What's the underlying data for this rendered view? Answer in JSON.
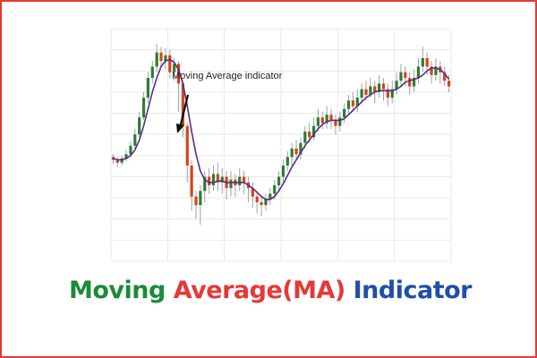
{
  "chart_data": {
    "type": "candlestick",
    "annotation": "Moving Average indicator",
    "grid": true,
    "colors": {
      "up": "#2e7d32",
      "down": "#d84315",
      "ma_line": "#5b2a86",
      "grid": "#e9e9e9"
    },
    "candles": [
      {
        "o": 58,
        "c": 56,
        "h": 60,
        "l": 53
      },
      {
        "o": 56,
        "c": 54,
        "h": 58,
        "l": 51
      },
      {
        "o": 54,
        "c": 57,
        "h": 59,
        "l": 52
      },
      {
        "o": 57,
        "c": 60,
        "h": 63,
        "l": 55
      },
      {
        "o": 60,
        "c": 66,
        "h": 69,
        "l": 58
      },
      {
        "o": 66,
        "c": 74,
        "h": 78,
        "l": 64
      },
      {
        "o": 74,
        "c": 86,
        "h": 90,
        "l": 72
      },
      {
        "o": 86,
        "c": 100,
        "h": 104,
        "l": 84
      },
      {
        "o": 100,
        "c": 114,
        "h": 118,
        "l": 96
      },
      {
        "o": 114,
        "c": 122,
        "h": 126,
        "l": 110
      },
      {
        "o": 122,
        "c": 132,
        "h": 138,
        "l": 118
      },
      {
        "o": 132,
        "c": 126,
        "h": 136,
        "l": 122
      },
      {
        "o": 126,
        "c": 130,
        "h": 135,
        "l": 120
      },
      {
        "o": 130,
        "c": 118,
        "h": 134,
        "l": 114
      },
      {
        "o": 118,
        "c": 124,
        "h": 128,
        "l": 112
      },
      {
        "o": 124,
        "c": 110,
        "h": 126,
        "l": 90
      },
      {
        "o": 110,
        "c": 80,
        "h": 112,
        "l": 72
      },
      {
        "o": 80,
        "c": 52,
        "h": 82,
        "l": 40
      },
      {
        "o": 52,
        "c": 30,
        "h": 56,
        "l": 20
      },
      {
        "o": 30,
        "c": 24,
        "h": 34,
        "l": 14
      },
      {
        "o": 24,
        "c": 34,
        "h": 38,
        "l": 10
      },
      {
        "o": 34,
        "c": 44,
        "h": 48,
        "l": 26
      },
      {
        "o": 44,
        "c": 38,
        "h": 50,
        "l": 32
      },
      {
        "o": 38,
        "c": 46,
        "h": 52,
        "l": 34
      },
      {
        "o": 46,
        "c": 40,
        "h": 54,
        "l": 34
      },
      {
        "o": 40,
        "c": 44,
        "h": 50,
        "l": 32
      },
      {
        "o": 44,
        "c": 36,
        "h": 48,
        "l": 28
      },
      {
        "o": 36,
        "c": 42,
        "h": 48,
        "l": 30
      },
      {
        "o": 42,
        "c": 38,
        "h": 46,
        "l": 30
      },
      {
        "o": 38,
        "c": 44,
        "h": 50,
        "l": 34
      },
      {
        "o": 44,
        "c": 40,
        "h": 48,
        "l": 32
      },
      {
        "o": 40,
        "c": 36,
        "h": 44,
        "l": 26
      },
      {
        "o": 36,
        "c": 30,
        "h": 40,
        "l": 22
      },
      {
        "o": 30,
        "c": 26,
        "h": 34,
        "l": 18
      },
      {
        "o": 26,
        "c": 24,
        "h": 30,
        "l": 16
      },
      {
        "o": 24,
        "c": 28,
        "h": 32,
        "l": 20
      },
      {
        "o": 28,
        "c": 32,
        "h": 36,
        "l": 24
      },
      {
        "o": 32,
        "c": 38,
        "h": 42,
        "l": 28
      },
      {
        "o": 38,
        "c": 44,
        "h": 48,
        "l": 34
      },
      {
        "o": 44,
        "c": 52,
        "h": 56,
        "l": 40
      },
      {
        "o": 52,
        "c": 58,
        "h": 62,
        "l": 48
      },
      {
        "o": 58,
        "c": 64,
        "h": 68,
        "l": 52
      },
      {
        "o": 64,
        "c": 60,
        "h": 70,
        "l": 56
      },
      {
        "o": 60,
        "c": 68,
        "h": 72,
        "l": 56
      },
      {
        "o": 68,
        "c": 76,
        "h": 80,
        "l": 64
      },
      {
        "o": 76,
        "c": 72,
        "h": 82,
        "l": 68
      },
      {
        "o": 72,
        "c": 80,
        "h": 86,
        "l": 70
      },
      {
        "o": 80,
        "c": 86,
        "h": 92,
        "l": 76
      },
      {
        "o": 86,
        "c": 82,
        "h": 90,
        "l": 78
      },
      {
        "o": 82,
        "c": 88,
        "h": 94,
        "l": 78
      },
      {
        "o": 88,
        "c": 84,
        "h": 92,
        "l": 78
      },
      {
        "o": 84,
        "c": 80,
        "h": 88,
        "l": 74
      },
      {
        "o": 80,
        "c": 86,
        "h": 90,
        "l": 76
      },
      {
        "o": 86,
        "c": 92,
        "h": 96,
        "l": 82
      },
      {
        "o": 92,
        "c": 98,
        "h": 102,
        "l": 88
      },
      {
        "o": 98,
        "c": 94,
        "h": 104,
        "l": 90
      },
      {
        "o": 94,
        "c": 100,
        "h": 106,
        "l": 90
      },
      {
        "o": 100,
        "c": 106,
        "h": 110,
        "l": 96
      },
      {
        "o": 106,
        "c": 102,
        "h": 112,
        "l": 98
      },
      {
        "o": 102,
        "c": 108,
        "h": 114,
        "l": 100
      },
      {
        "o": 108,
        "c": 104,
        "h": 112,
        "l": 96
      },
      {
        "o": 104,
        "c": 110,
        "h": 116,
        "l": 100
      },
      {
        "o": 110,
        "c": 106,
        "h": 114,
        "l": 98
      },
      {
        "o": 106,
        "c": 100,
        "h": 110,
        "l": 94
      },
      {
        "o": 100,
        "c": 106,
        "h": 112,
        "l": 96
      },
      {
        "o": 106,
        "c": 112,
        "h": 118,
        "l": 102
      },
      {
        "o": 112,
        "c": 118,
        "h": 124,
        "l": 108
      },
      {
        "o": 118,
        "c": 114,
        "h": 122,
        "l": 108
      },
      {
        "o": 114,
        "c": 108,
        "h": 118,
        "l": 102
      },
      {
        "o": 108,
        "c": 114,
        "h": 120,
        "l": 104
      },
      {
        "o": 114,
        "c": 122,
        "h": 128,
        "l": 110
      },
      {
        "o": 122,
        "c": 128,
        "h": 136,
        "l": 118
      },
      {
        "o": 128,
        "c": 122,
        "h": 132,
        "l": 116
      },
      {
        "o": 122,
        "c": 116,
        "h": 126,
        "l": 110
      },
      {
        "o": 116,
        "c": 122,
        "h": 128,
        "l": 112
      },
      {
        "o": 122,
        "c": 118,
        "h": 126,
        "l": 110
      },
      {
        "o": 118,
        "c": 112,
        "h": 122,
        "l": 108
      },
      {
        "o": 112,
        "c": 108,
        "h": 116,
        "l": 104
      }
    ],
    "ma": [
      57,
      56,
      56,
      57,
      59,
      63,
      70,
      80,
      92,
      104,
      114,
      122,
      126,
      127,
      125,
      120,
      110,
      94,
      76,
      60,
      48,
      42,
      40,
      40,
      41,
      41,
      40,
      40,
      40,
      40,
      40,
      38,
      36,
      33,
      30,
      28,
      28,
      30,
      34,
      39,
      45,
      51,
      56,
      61,
      66,
      70,
      74,
      78,
      81,
      83,
      84,
      84,
      84,
      85,
      88,
      91,
      94,
      97,
      100,
      102,
      104,
      105,
      105,
      105,
      105,
      106,
      108,
      111,
      112,
      113,
      114,
      116,
      119,
      121,
      121,
      120,
      117,
      113
    ]
  },
  "caption": {
    "part1": "Moving",
    "part2": "Average(MA)",
    "part3": "Indicator",
    "color1": "#1b8a3a",
    "color2": "#e53935",
    "color3": "#1f4fa8"
  }
}
